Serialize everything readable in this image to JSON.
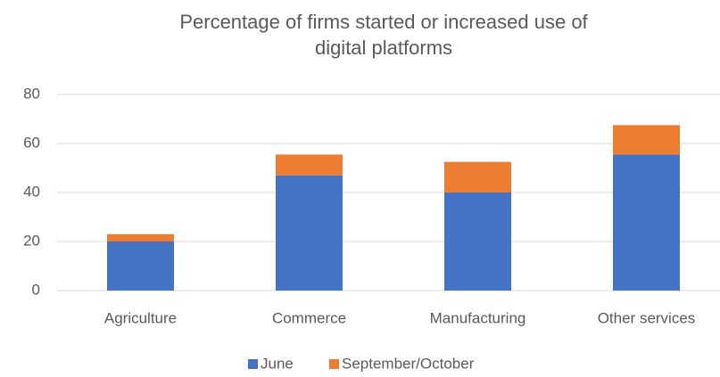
{
  "chart_data": {
    "type": "stacked_bar",
    "title": "Percentage of firms started or increased use of digital platforms",
    "categories": [
      "Agriculture",
      "Commerce",
      "Manufacturing",
      "Other services"
    ],
    "series": [
      {
        "name": "June",
        "color": "#4472c4",
        "values": [
          20,
          47,
          40,
          55.5
        ]
      },
      {
        "name": "September/October",
        "color": "#ed7d31",
        "values": [
          3,
          8.5,
          12.5,
          12
        ]
      }
    ],
    "ylim": [
      0,
      80
    ],
    "yticks": [
      0,
      20,
      40,
      60,
      80
    ],
    "grid": true,
    "legend": "bottom"
  }
}
